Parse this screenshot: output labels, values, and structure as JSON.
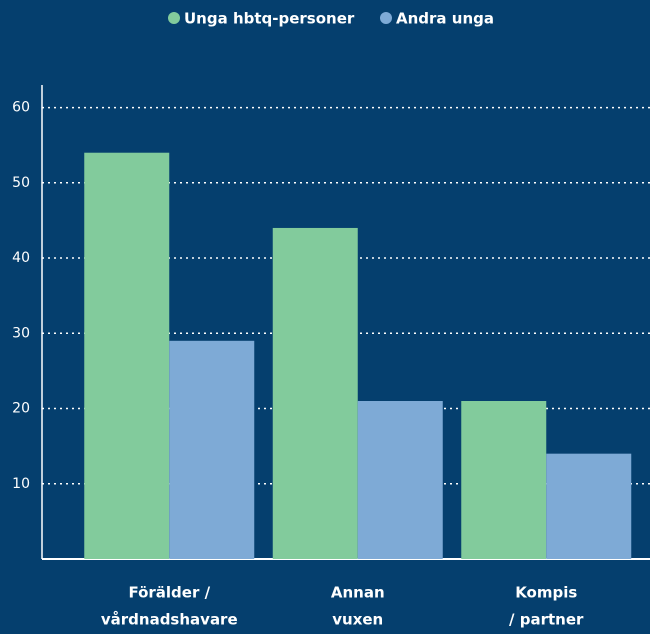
{
  "chart_data": {
    "type": "bar",
    "categories": [
      [
        "Förälder /",
        "vårdnadshavare"
      ],
      [
        "Annan",
        "vuxen"
      ],
      [
        "Kompis",
        "/ partner"
      ]
    ],
    "series": [
      {
        "name": "Unga hbtq-personer",
        "color": "#82cb9c",
        "values": [
          54,
          44,
          21
        ]
      },
      {
        "name": "Andra unga",
        "color": "#7eaad6",
        "values": [
          29,
          21,
          14
        ]
      }
    ],
    "ylim": [
      0,
      63
    ],
    "yticks": [
      10,
      20,
      30,
      40,
      50,
      60
    ],
    "grid": true,
    "legend": "top"
  }
}
